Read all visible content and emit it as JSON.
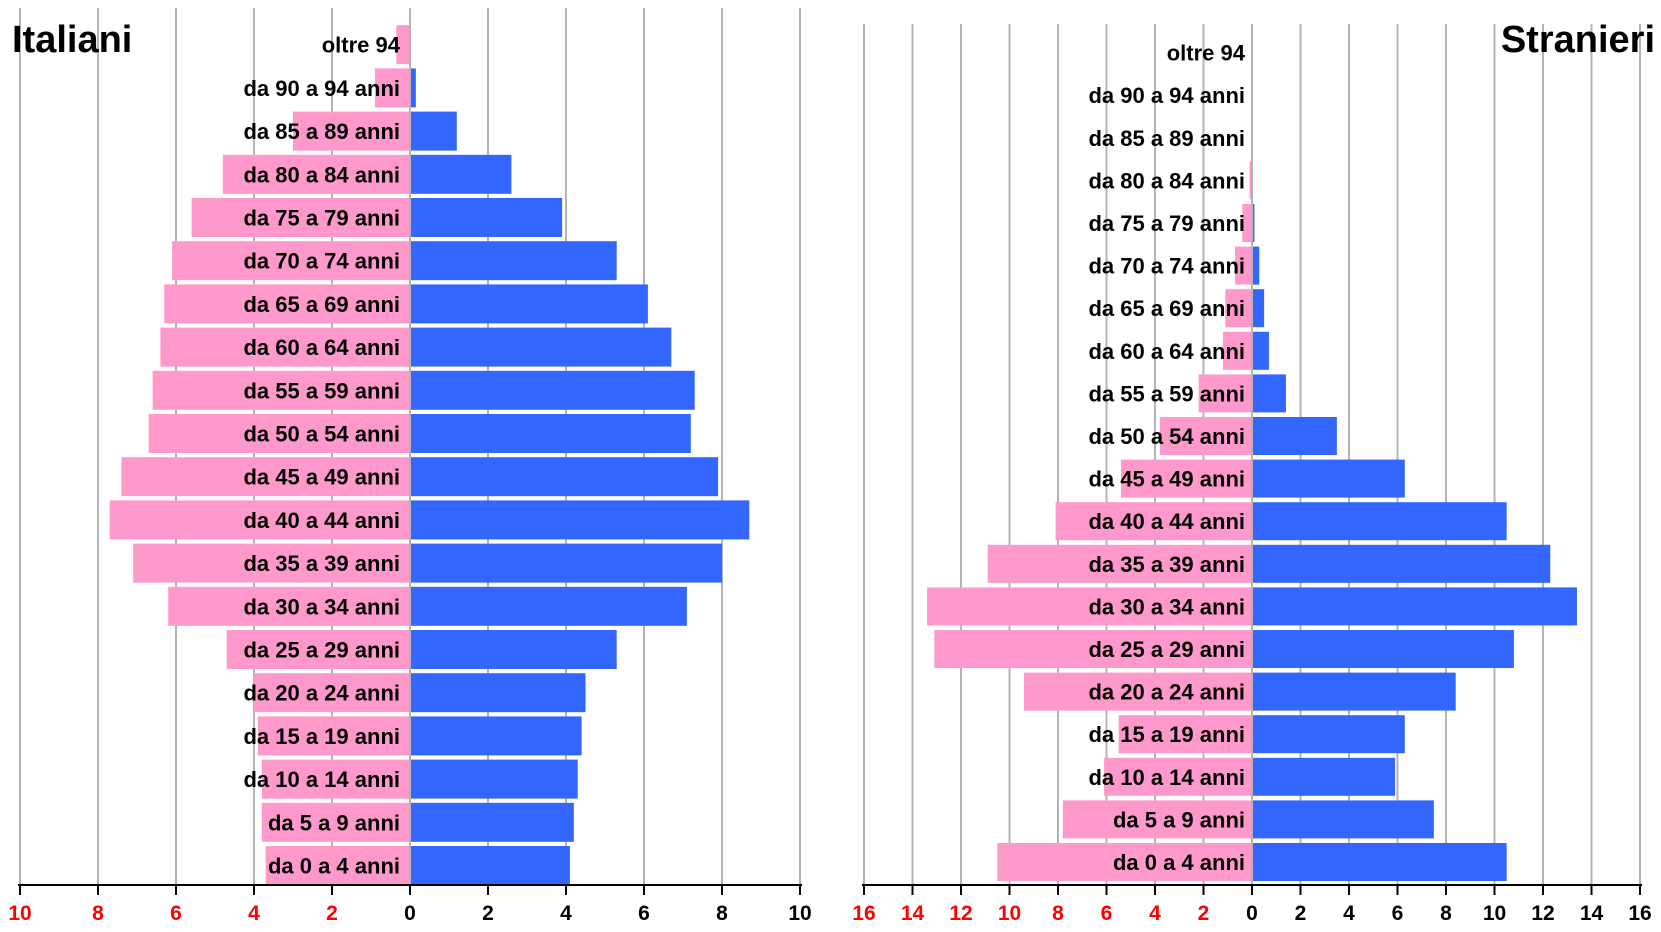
{
  "colors": {
    "female": "#ff99cc",
    "male": "#3366ff",
    "left_ticks": "#ff0000",
    "right_ticks": "#000000",
    "grid": "#b4b4b4"
  },
  "chart_data": [
    {
      "type": "bar",
      "orientation": "horizontal-population-pyramid",
      "title": "Italiani",
      "categories": [
        "da 0 a 4 anni",
        "da 5 a 9 anni",
        "da 10 a 14 anni",
        "da 15 a 19 anni",
        "da 20 a 24 anni",
        "da 25 a 29 anni",
        "da 30 a 34 anni",
        "da 35 a 39 anni",
        "da 40 a 44 anni",
        "da 45 a 49 anni",
        "da 50 a 54 anni",
        "da 55 a 59 anni",
        "da 60 a 64 anni",
        "da 65 a 69 anni",
        "da 70 a 74 anni",
        "da 75 a 79 anni",
        "da 80 a 84 anni",
        "da 85 a 89 anni",
        "da 90 a 94 anni",
        "oltre 94"
      ],
      "series": [
        {
          "side": "left",
          "color": "#ff99cc",
          "values": [
            3.7,
            3.8,
            3.8,
            3.9,
            4.0,
            4.7,
            6.2,
            7.1,
            7.7,
            7.4,
            6.7,
            6.6,
            6.4,
            6.3,
            6.1,
            5.6,
            4.8,
            3.0,
            0.9,
            0.35
          ]
        },
        {
          "side": "right",
          "color": "#3366ff",
          "values": [
            4.1,
            4.2,
            4.3,
            4.4,
            4.5,
            5.3,
            7.1,
            8.0,
            8.7,
            7.9,
            7.2,
            7.3,
            6.7,
            6.1,
            5.3,
            3.9,
            2.6,
            1.2,
            0.15,
            0.0
          ]
        }
      ],
      "xlim": [
        -10,
        10
      ],
      "xticks": [
        -10,
        -8,
        -6,
        -4,
        -2,
        0,
        2,
        4,
        6,
        8,
        10
      ],
      "xtick_labels": [
        "10",
        "8",
        "6",
        "4",
        "2",
        "0",
        "2",
        "4",
        "6",
        "8",
        "10"
      ],
      "grid": true
    },
    {
      "type": "bar",
      "orientation": "horizontal-population-pyramid",
      "title": "Stranieri",
      "categories": [
        "da 0 a 4 anni",
        "da 5 a 9 anni",
        "da 10 a 14 anni",
        "da 15 a 19 anni",
        "da 20 a 24 anni",
        "da 25 a 29 anni",
        "da 30 a 34 anni",
        "da 35 a 39 anni",
        "da 40 a 44 anni",
        "da 45 a 49 anni",
        "da 50 a 54 anni",
        "da 55 a 59 anni",
        "da 60 a 64 anni",
        "da 65 a 69 anni",
        "da 70 a 74 anni",
        "da 75 a 79 anni",
        "da 80 a 84 anni",
        "da 85 a 89 anni",
        "da 90 a 94 anni",
        "oltre 94"
      ],
      "series": [
        {
          "side": "left",
          "color": "#ff99cc",
          "values": [
            10.5,
            7.8,
            6.1,
            5.5,
            9.4,
            13.1,
            13.4,
            10.9,
            8.1,
            5.4,
            3.8,
            2.2,
            1.2,
            1.1,
            0.7,
            0.4,
            0.1,
            0.0,
            0.0,
            0.0
          ]
        },
        {
          "side": "right",
          "color": "#3366ff",
          "values": [
            10.5,
            7.5,
            5.9,
            6.3,
            8.4,
            10.8,
            13.4,
            12.3,
            10.5,
            6.3,
            3.5,
            1.4,
            0.7,
            0.5,
            0.3,
            0.1,
            0.0,
            0.0,
            0.0,
            0.0
          ]
        }
      ],
      "xlim": [
        -16,
        16
      ],
      "xticks": [
        -16,
        -14,
        -12,
        -10,
        -8,
        -6,
        -4,
        -2,
        0,
        2,
        4,
        6,
        8,
        10,
        12,
        14,
        16
      ],
      "xtick_labels": [
        "16",
        "14",
        "12",
        "10",
        "8",
        "6",
        "4",
        "2",
        "0",
        "2",
        "4",
        "6",
        "8",
        "10",
        "12",
        "14",
        "16"
      ],
      "grid": true
    }
  ]
}
